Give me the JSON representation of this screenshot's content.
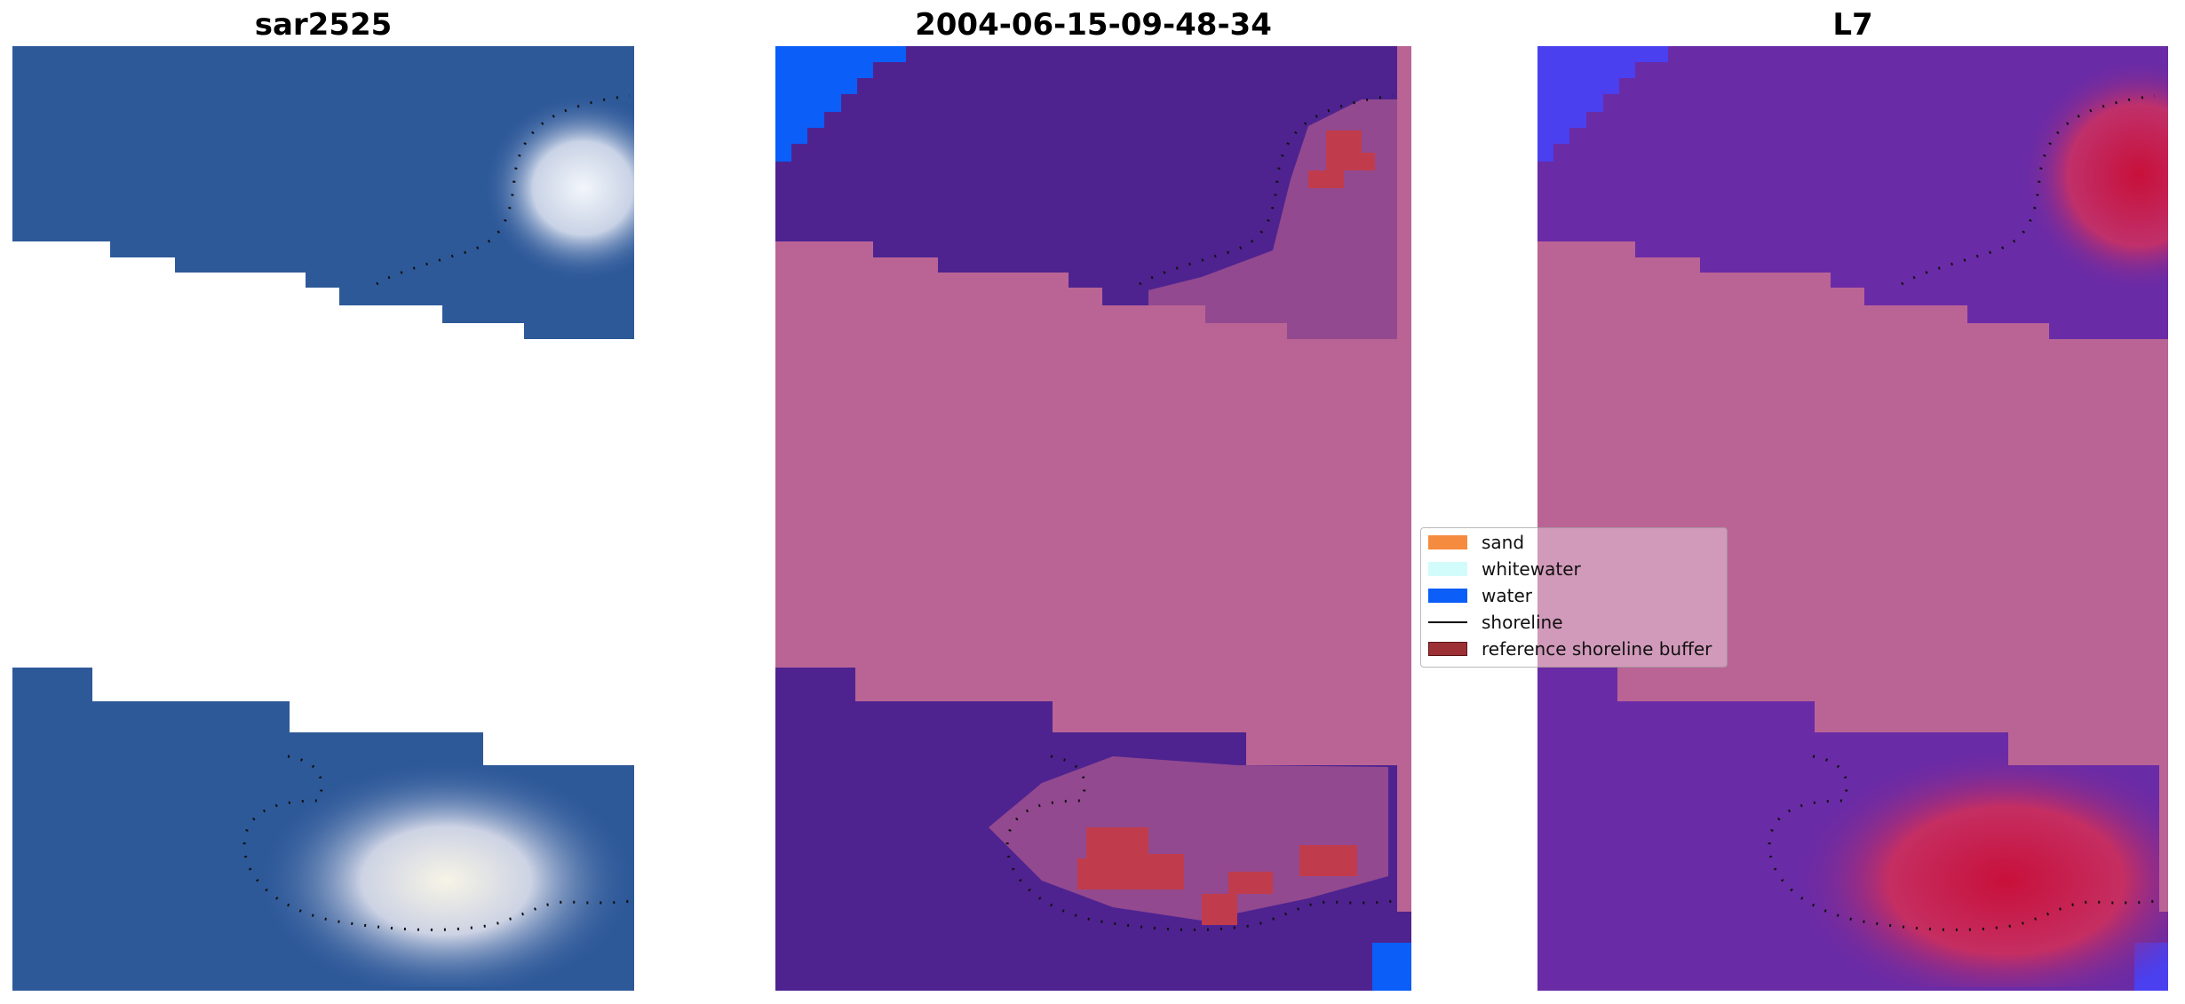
{
  "panels": [
    {
      "title": "sar2525"
    },
    {
      "title": "2004-06-15-09-48-34"
    },
    {
      "title": "L7"
    }
  ],
  "legend": {
    "items": [
      {
        "label": "sand",
        "color": "#f58b3f"
      },
      {
        "label": "whitewater",
        "color": "#d2fbfb"
      },
      {
        "label": "water",
        "color": "#0b5ef7"
      },
      {
        "label": "shoreline",
        "color": "#000000"
      },
      {
        "label": "reference shoreline buffer",
        "color": "#9c3035"
      }
    ]
  },
  "colors": {
    "rgb_water": "#2f5a9c",
    "rgb_surf": "#dfe6f2",
    "class_water": "#4e2390",
    "class_nodata": "#ba6495",
    "class_buffer": "#c03c4c",
    "class_ocean_edge": "#0b5ef7",
    "ndwi_low": "#6a2ba6",
    "ndwi_high": "#c8103a",
    "ndwi_nodata": "#ba6495"
  }
}
